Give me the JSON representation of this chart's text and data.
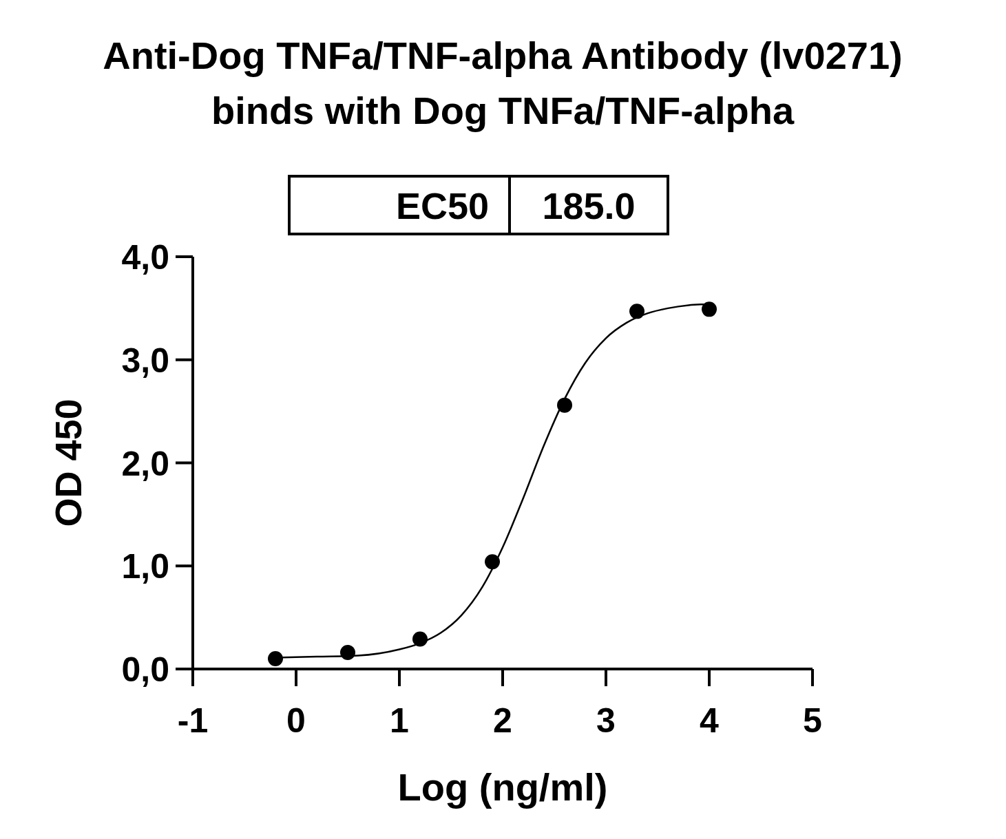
{
  "chart_data": {
    "type": "scatter",
    "title": "Anti-Dog TNFa/TNF-alpha Antibody (lv0271)\nbinds with Dog TNFa/TNF-alpha",
    "xlabel": "Log (ng/ml)",
    "ylabel": "OD 450",
    "annotations": [
      "EC50",
      "185.0"
    ],
    "xlim": [
      -1,
      5
    ],
    "xticks": [
      -1,
      0,
      1,
      2,
      3,
      4,
      5
    ],
    "ylim": [
      0,
      4
    ],
    "yticks": [
      {
        "value": 0,
        "label": "0,0"
      },
      {
        "value": 1,
        "label": "1,0"
      },
      {
        "value": 2,
        "label": "2,0"
      },
      {
        "value": 3,
        "label": "3,0"
      },
      {
        "value": 4,
        "label": "4,0"
      }
    ],
    "grid": false,
    "marker": "circle",
    "series": [
      {
        "color": "#000000",
        "x": [
          -0.2,
          0.5,
          1.2,
          1.9,
          2.6,
          3.3,
          4.0
        ],
        "values": [
          0.1,
          0.16,
          0.29,
          1.04,
          2.56,
          3.47,
          3.49
        ]
      },
      {
        "type": "line",
        "color": "#000000",
        "marker": "none",
        "line_style": "solid",
        "x": [
          -0.2,
          0.2,
          0.6,
          1.0,
          1.2,
          1.4,
          1.6,
          1.8,
          2.0,
          2.2,
          2.4,
          2.6,
          2.8,
          3.0,
          3.2,
          3.4,
          3.6,
          3.8,
          4.0
        ],
        "values": [
          0.11,
          0.12,
          0.13,
          0.19,
          0.25,
          0.35,
          0.52,
          0.79,
          1.18,
          1.66,
          2.17,
          2.62,
          2.97,
          3.21,
          3.36,
          3.45,
          3.5,
          3.53,
          3.54
        ]
      }
    ]
  }
}
